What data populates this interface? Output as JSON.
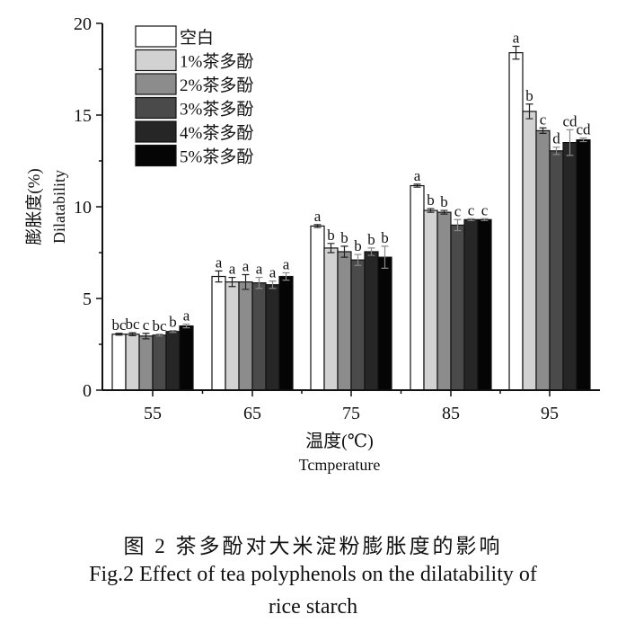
{
  "chart_data": {
    "type": "bar",
    "title": "",
    "xlabel": "温度(℃)",
    "xlabel_en": "Tcmperature",
    "ylabel": "膨胀度(%)",
    "ylabel_en": "Dilatability",
    "ylim": [
      0,
      20
    ],
    "yticks": [
      0,
      5,
      10,
      15,
      20
    ],
    "categories": [
      "55",
      "65",
      "75",
      "85",
      "95"
    ],
    "legend_position": "top-left",
    "series": [
      {
        "name": "空白",
        "color": "#ffffff",
        "values": [
          3.05,
          6.2,
          8.95,
          11.15,
          18.4
        ],
        "errors": [
          0.05,
          0.3,
          0.08,
          0.08,
          0.35
        ],
        "letters": [
          "bc",
          "a",
          "a",
          "a",
          "a"
        ]
      },
      {
        "name": "1%茶多酚",
        "color": "#d2d2d2",
        "values": [
          3.05,
          5.9,
          7.75,
          9.8,
          15.2
        ],
        "errors": [
          0.08,
          0.25,
          0.25,
          0.1,
          0.4
        ],
        "letters": [
          "bc",
          "a",
          "b",
          "b",
          "b"
        ]
      },
      {
        "name": "2%茶多酚",
        "color": "#8c8c8c",
        "values": [
          2.95,
          5.9,
          7.55,
          9.7,
          14.15
        ],
        "errors": [
          0.15,
          0.4,
          0.3,
          0.1,
          0.15
        ],
        "letters": [
          "c",
          "a",
          "b",
          "b",
          "c"
        ]
      },
      {
        "name": "3%茶多酚",
        "color": "#4a4a4a",
        "values": [
          3.0,
          5.85,
          7.1,
          9.0,
          13.05
        ],
        "errors": [
          0.05,
          0.3,
          0.3,
          0.3,
          0.2
        ],
        "letters": [
          "bc",
          "a",
          "b",
          "c",
          "d"
        ]
      },
      {
        "name": "4%茶多酚",
        "color": "#262626",
        "values": [
          3.2,
          5.75,
          7.55,
          9.3,
          13.5
        ],
        "errors": [
          0.05,
          0.2,
          0.2,
          0.05,
          0.7
        ],
        "letters": [
          "b",
          "a",
          "b",
          "c",
          "cd"
        ]
      },
      {
        "name": "5%茶多酚",
        "color": "#050505",
        "values": [
          3.5,
          6.2,
          7.25,
          9.3,
          13.65
        ],
        "errors": [
          0.1,
          0.2,
          0.6,
          0.05,
          0.1
        ],
        "letters": [
          "a",
          "a",
          "b",
          "c",
          "cd"
        ]
      }
    ]
  },
  "caption": {
    "cn": "图 2  茶多酚对大米淀粉膨胀度的影响",
    "en_line1": "Fig.2 Effect of tea polyphenols on the dilatability of",
    "en_line2": "rice starch"
  }
}
